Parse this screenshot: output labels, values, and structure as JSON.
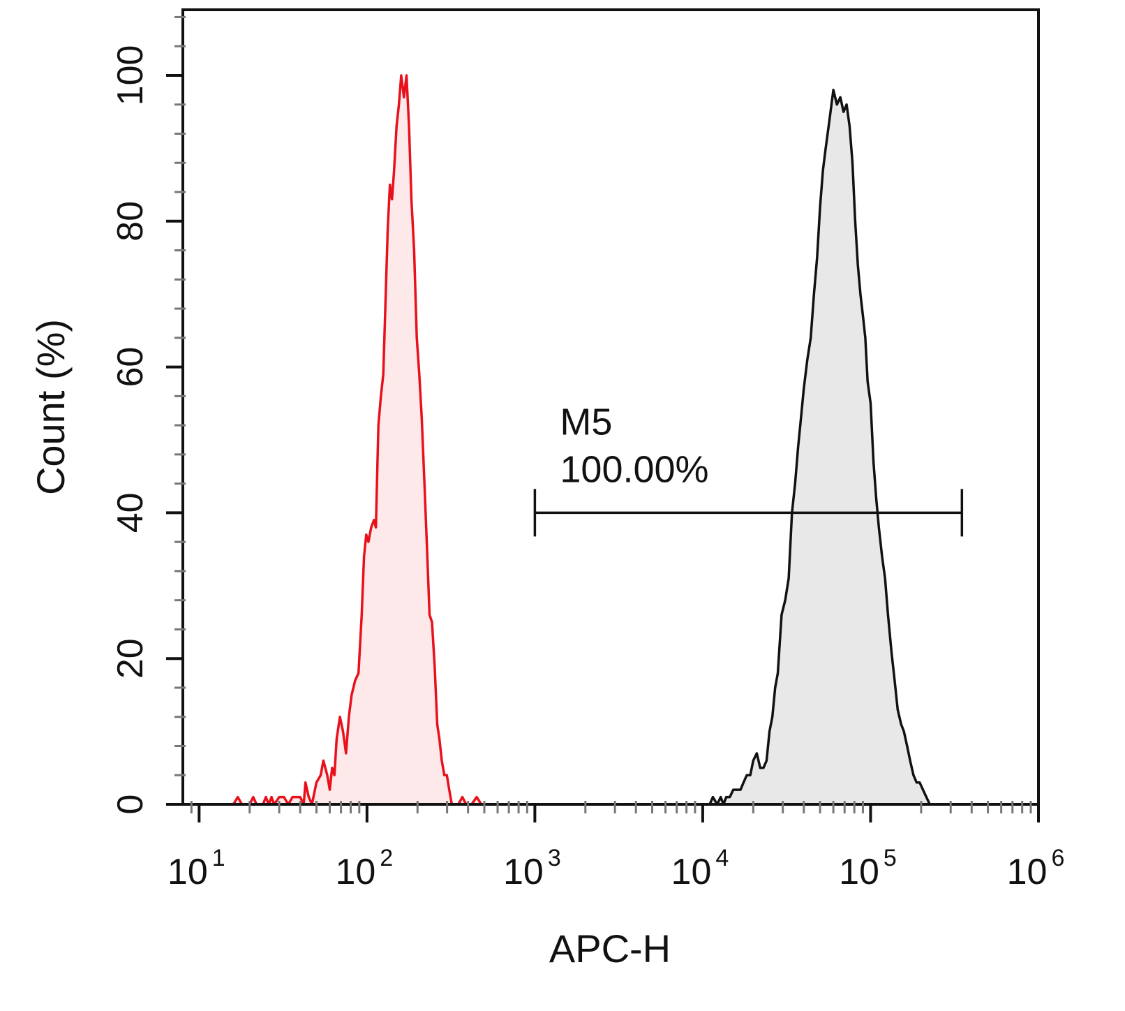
{
  "chart_data": {
    "type": "area",
    "xscale": "log",
    "xlim": [
      8,
      1000000
    ],
    "ylim": [
      0,
      109
    ],
    "xlabel": "APC-H",
    "ylabel": "Count  (%)",
    "x_ticks": [
      {
        "value": 10,
        "base": "10",
        "exp": "1"
      },
      {
        "value": 100,
        "base": "10",
        "exp": "2"
      },
      {
        "value": 1000,
        "base": "10",
        "exp": "3"
      },
      {
        "value": 10000,
        "base": "10",
        "exp": "4"
      },
      {
        "value": 100000,
        "base": "10",
        "exp": "5"
      },
      {
        "value": 1000000,
        "base": "10",
        "exp": "6"
      }
    ],
    "y_ticks": [
      {
        "value": 0,
        "label": "0"
      },
      {
        "value": 20,
        "label": "20"
      },
      {
        "value": 40,
        "label": "40"
      },
      {
        "value": 60,
        "label": "60"
      },
      {
        "value": 80,
        "label": "80"
      },
      {
        "value": 100,
        "label": "100"
      }
    ],
    "grid": false,
    "series": [
      {
        "stroke": "#e8111b",
        "fill": "#fde9ea",
        "points": [
          [
            16,
            0
          ],
          [
            17,
            1
          ],
          [
            18,
            0
          ],
          [
            20,
            0
          ],
          [
            21,
            1
          ],
          [
            22,
            0
          ],
          [
            24,
            0
          ],
          [
            25,
            1
          ],
          [
            26,
            0
          ],
          [
            27,
            1
          ],
          [
            28,
            0
          ],
          [
            30,
            1
          ],
          [
            32,
            1
          ],
          [
            34,
            0
          ],
          [
            36,
            1
          ],
          [
            38,
            1
          ],
          [
            40,
            1
          ],
          [
            42,
            0
          ],
          [
            43,
            3
          ],
          [
            45,
            1
          ],
          [
            47,
            0
          ],
          [
            50,
            3
          ],
          [
            53,
            4
          ],
          [
            55,
            6
          ],
          [
            58,
            4
          ],
          [
            60,
            2
          ],
          [
            62,
            5
          ],
          [
            64,
            4
          ],
          [
            66,
            9
          ],
          [
            69,
            12
          ],
          [
            72,
            10
          ],
          [
            75,
            7
          ],
          [
            78,
            12
          ],
          [
            81,
            15
          ],
          [
            85,
            17
          ],
          [
            89,
            18
          ],
          [
            93,
            26
          ],
          [
            96,
            34
          ],
          [
            99,
            37
          ],
          [
            102,
            36
          ],
          [
            106,
            38
          ],
          [
            110,
            39
          ],
          [
            113,
            38
          ],
          [
            117,
            52
          ],
          [
            121,
            56
          ],
          [
            125,
            59
          ],
          [
            129,
            69
          ],
          [
            133,
            79
          ],
          [
            137,
            85
          ],
          [
            141,
            83
          ],
          [
            145,
            87
          ],
          [
            150,
            93
          ],
          [
            155,
            96
          ],
          [
            160,
            100
          ],
          [
            166,
            97
          ],
          [
            172,
            100
          ],
          [
            178,
            93
          ],
          [
            184,
            83
          ],
          [
            191,
            76
          ],
          [
            198,
            64
          ],
          [
            205,
            59
          ],
          [
            212,
            53
          ],
          [
            220,
            44
          ],
          [
            228,
            35
          ],
          [
            236,
            26
          ],
          [
            244,
            25
          ],
          [
            253,
            19
          ],
          [
            262,
            11
          ],
          [
            270,
            9
          ],
          [
            279,
            6
          ],
          [
            289,
            4
          ],
          [
            299,
            4
          ],
          [
            309,
            2
          ],
          [
            320,
            0
          ],
          [
            335,
            0
          ],
          [
            350,
            0
          ],
          [
            370,
            1
          ],
          [
            390,
            0
          ],
          [
            420,
            0
          ],
          [
            450,
            1
          ],
          [
            480,
            0
          ],
          [
            1000,
            0
          ]
        ]
      },
      {
        "stroke": "#111111",
        "fill": "#e8e8e8",
        "points": [
          [
            10000,
            0
          ],
          [
            11000,
            0
          ],
          [
            11500,
            1
          ],
          [
            12200,
            0
          ],
          [
            12800,
            1
          ],
          [
            13300,
            0
          ],
          [
            13800,
            1
          ],
          [
            14500,
            1
          ],
          [
            15200,
            2
          ],
          [
            16000,
            2
          ],
          [
            16800,
            2
          ],
          [
            17500,
            3
          ],
          [
            18300,
            4
          ],
          [
            19200,
            4
          ],
          [
            20000,
            6
          ],
          [
            21000,
            7
          ],
          [
            22000,
            5
          ],
          [
            23000,
            5
          ],
          [
            24000,
            6
          ],
          [
            25000,
            10
          ],
          [
            26000,
            12
          ],
          [
            27000,
            16
          ],
          [
            28000,
            18
          ],
          [
            29500,
            26
          ],
          [
            31000,
            28
          ],
          [
            32500,
            31
          ],
          [
            34000,
            40
          ],
          [
            35500,
            44
          ],
          [
            37000,
            49
          ],
          [
            38500,
            53
          ],
          [
            40000,
            57
          ],
          [
            42000,
            61
          ],
          [
            44000,
            64
          ],
          [
            46000,
            70
          ],
          [
            48000,
            75
          ],
          [
            50000,
            82
          ],
          [
            52000,
            87
          ],
          [
            54000,
            90
          ],
          [
            57000,
            94
          ],
          [
            60000,
            98
          ],
          [
            63000,
            96
          ],
          [
            66000,
            97
          ],
          [
            69000,
            95
          ],
          [
            72000,
            96
          ],
          [
            75000,
            93
          ],
          [
            78000,
            88
          ],
          [
            81000,
            80
          ],
          [
            84000,
            74
          ],
          [
            87000,
            70
          ],
          [
            90000,
            67
          ],
          [
            93000,
            64
          ],
          [
            96000,
            58
          ],
          [
            100000,
            55
          ],
          [
            104000,
            47
          ],
          [
            108000,
            42
          ],
          [
            112000,
            38
          ],
          [
            117000,
            34
          ],
          [
            122000,
            31
          ],
          [
            127000,
            26
          ],
          [
            133000,
            21
          ],
          [
            139000,
            17
          ],
          [
            145000,
            13
          ],
          [
            152000,
            11
          ],
          [
            158000,
            10
          ],
          [
            165000,
            8
          ],
          [
            172000,
            6
          ],
          [
            180000,
            4
          ],
          [
            188000,
            3
          ],
          [
            196000,
            3
          ],
          [
            205000,
            2
          ],
          [
            215000,
            1
          ],
          [
            225000,
            0
          ],
          [
            240000,
            0
          ]
        ]
      }
    ],
    "marker": {
      "name": "M5",
      "percent": "100.00%",
      "x_range": [
        1000,
        350000
      ],
      "y": 40
    }
  }
}
